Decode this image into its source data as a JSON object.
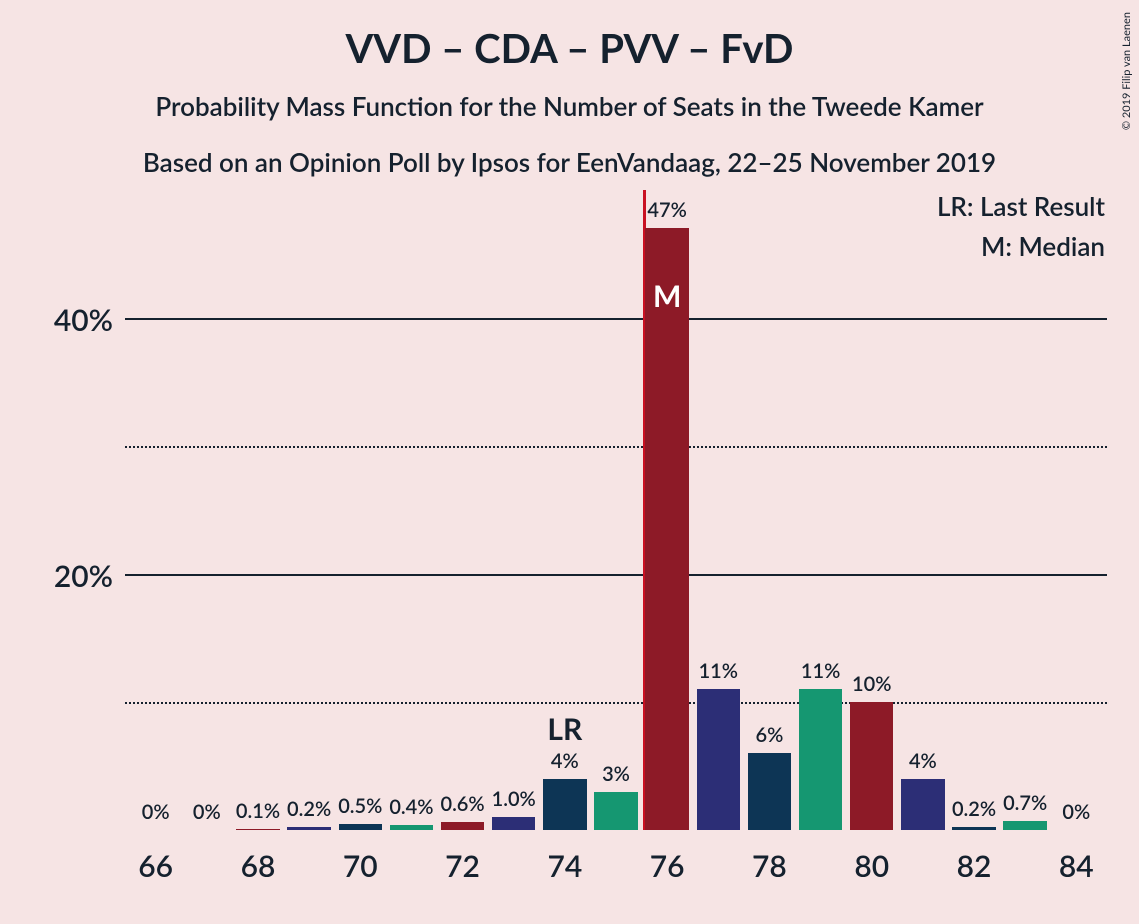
{
  "title": "VVD – CDA – PVV – FvD",
  "subtitle1": "Probability Mass Function for the Number of Seats in the Tweede Kamer",
  "subtitle2": "Based on an Opinion Poll by Ipsos for EenVandaag, 22–25 November 2019",
  "legend": {
    "lr": "LR: Last Result",
    "m": "M: Median"
  },
  "copyright": "© 2019 Filip van Laenen",
  "chart": {
    "type": "bar",
    "background_color": "#f6e4e4",
    "text_color": "#15212e",
    "grid_color": "#15212e",
    "median_line_color": "#c91022",
    "x_start": 66,
    "x_end": 84,
    "x_tick_step": 2,
    "y_max": 50,
    "y_ticks": [
      {
        "value": 10,
        "label": "",
        "style": "dotted"
      },
      {
        "value": 20,
        "label": "20%",
        "style": "solid"
      },
      {
        "value": 30,
        "label": "",
        "style": "dotted"
      },
      {
        "value": 40,
        "label": "40%",
        "style": "solid"
      }
    ],
    "bar_colors": [
      "#0d3555",
      "#159771",
      "#8d1a27",
      "#2c2e76"
    ],
    "bar_unit_width": 0.85,
    "median_x": 76,
    "median_label": "M",
    "lr_x": 74,
    "lr_label": "LR",
    "bars": [
      {
        "x": 66,
        "value": 0,
        "label": "0%"
      },
      {
        "x": 67,
        "value": 0,
        "label": "0%"
      },
      {
        "x": 68,
        "value": 0.1,
        "label": "0.1%"
      },
      {
        "x": 69,
        "value": 0.2,
        "label": "0.2%"
      },
      {
        "x": 70,
        "value": 0.5,
        "label": "0.5%"
      },
      {
        "x": 71,
        "value": 0.4,
        "label": "0.4%"
      },
      {
        "x": 72,
        "value": 0.6,
        "label": "0.6%"
      },
      {
        "x": 73,
        "value": 1.0,
        "label": "1.0%"
      },
      {
        "x": 74,
        "value": 4,
        "label": "4%"
      },
      {
        "x": 75,
        "value": 3,
        "label": "3%"
      },
      {
        "x": 76,
        "value": 47,
        "label": "47%"
      },
      {
        "x": 77,
        "value": 11,
        "label": "11%"
      },
      {
        "x": 78,
        "value": 6,
        "label": "6%"
      },
      {
        "x": 79,
        "value": 11,
        "label": "11%"
      },
      {
        "x": 80,
        "value": 10,
        "label": "10%"
      },
      {
        "x": 81,
        "value": 4,
        "label": "4%"
      },
      {
        "x": 82,
        "value": 0.2,
        "label": "0.2%"
      },
      {
        "x": 83,
        "value": 0.7,
        "label": "0.7%"
      },
      {
        "x": 84,
        "value": 0,
        "label": "0%"
      }
    ]
  }
}
